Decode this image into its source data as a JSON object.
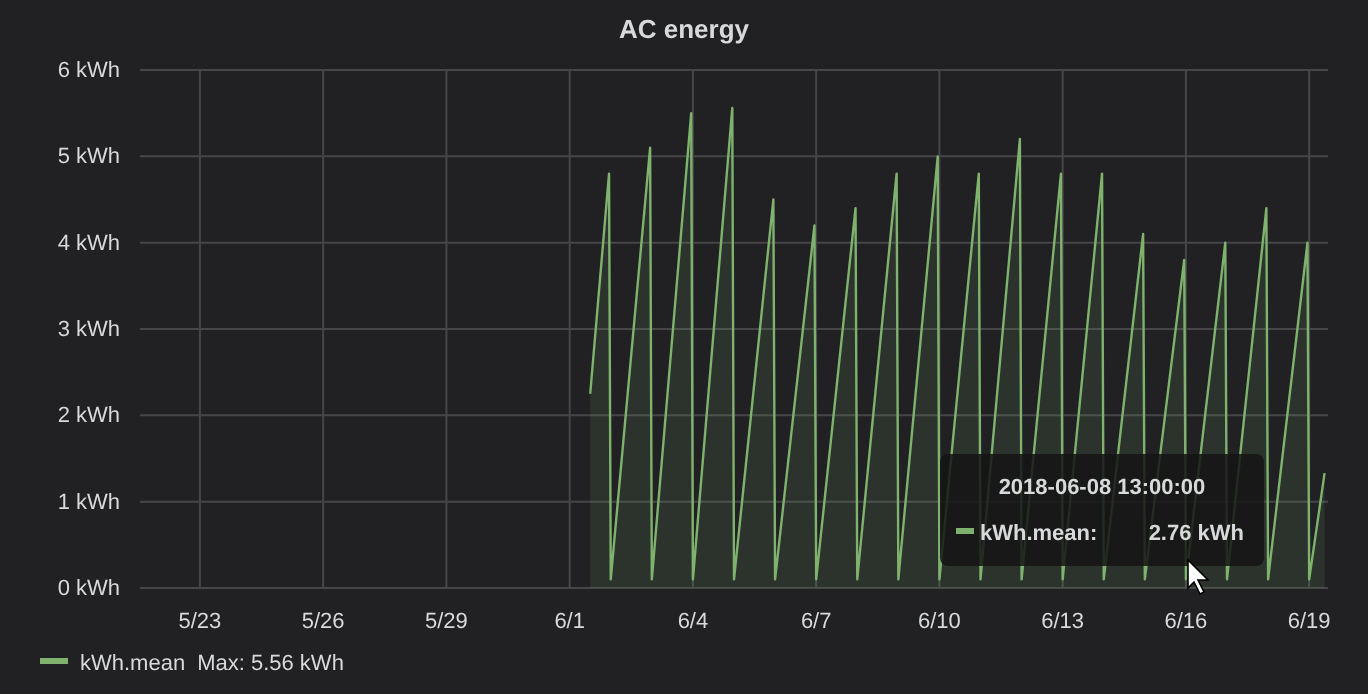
{
  "chart_data": {
    "type": "area",
    "title": "AC energy",
    "x": [
      "2018-06-01T12:00",
      "2018-06-01T23:00",
      "2018-06-02T00:00",
      "2018-06-02T23:00",
      "2018-06-03T00:00",
      "2018-06-03T23:00",
      "2018-06-04T00:00",
      "2018-06-04T23:00",
      "2018-06-05T00:00",
      "2018-06-05T23:00",
      "2018-06-06T00:00",
      "2018-06-06T23:00",
      "2018-06-07T00:00",
      "2018-06-07T23:00",
      "2018-06-08T00:00",
      "2018-06-08T23:00",
      "2018-06-09T00:00",
      "2018-06-09T23:00",
      "2018-06-10T00:00",
      "2018-06-10T23:00",
      "2018-06-11T00:00",
      "2018-06-11T23:00",
      "2018-06-12T00:00",
      "2018-06-12T23:00",
      "2018-06-13T00:00",
      "2018-06-13T23:00",
      "2018-06-14T00:00",
      "2018-06-14T23:00",
      "2018-06-15T00:00",
      "2018-06-15T23:00",
      "2018-06-16T00:00",
      "2018-06-16T23:00",
      "2018-06-17T00:00",
      "2018-06-17T23:00",
      "2018-06-18T00:00",
      "2018-06-18T23:00",
      "2018-06-19T00:00",
      "2018-06-19T09:00"
    ],
    "series": [
      {
        "name": "kWh.mean",
        "color": "#7eb26d",
        "values": [
          2.25,
          4.8,
          0.1,
          5.1,
          0.1,
          5.5,
          0.1,
          5.56,
          0.1,
          4.5,
          0.1,
          4.2,
          0.1,
          4.4,
          0.1,
          4.8,
          0.1,
          5.0,
          0.1,
          4.8,
          0.1,
          5.2,
          0.1,
          4.8,
          0.1,
          4.8,
          0.1,
          4.1,
          0.1,
          3.8,
          0.1,
          4.0,
          0.1,
          4.4,
          0.1,
          4.0,
          0.1,
          1.33
        ]
      }
    ],
    "xlim": [
      "2018-05-21T13:00",
      "2018-06-19T11:00"
    ],
    "xticks": [
      {
        "value": "2018-05-23",
        "label": "5/23"
      },
      {
        "value": "2018-05-26",
        "label": "5/26"
      },
      {
        "value": "2018-05-29",
        "label": "5/29"
      },
      {
        "value": "2018-06-01",
        "label": "6/1"
      },
      {
        "value": "2018-06-04",
        "label": "6/4"
      },
      {
        "value": "2018-06-07",
        "label": "6/7"
      },
      {
        "value": "2018-06-10",
        "label": "6/10"
      },
      {
        "value": "2018-06-13",
        "label": "6/13"
      },
      {
        "value": "2018-06-16",
        "label": "6/16"
      },
      {
        "value": "2018-06-19",
        "label": "6/19"
      }
    ],
    "ylim": [
      0,
      6
    ],
    "yticks": [
      {
        "value": 0,
        "label": "0 kWh"
      },
      {
        "value": 1,
        "label": "1 kWh"
      },
      {
        "value": 2,
        "label": "2 kWh"
      },
      {
        "value": 3,
        "label": "3 kWh"
      },
      {
        "value": 4,
        "label": "4 kWh"
      },
      {
        "value": 5,
        "label": "5 kWh"
      },
      {
        "value": 6,
        "label": "6 kWh"
      }
    ],
    "grid": true,
    "legend": "bottom",
    "annotations": [
      "Max: 5.56 kWh",
      "2018-06-08 13:00:00",
      "kWh.mean:",
      "2.76 kWh"
    ]
  }
}
